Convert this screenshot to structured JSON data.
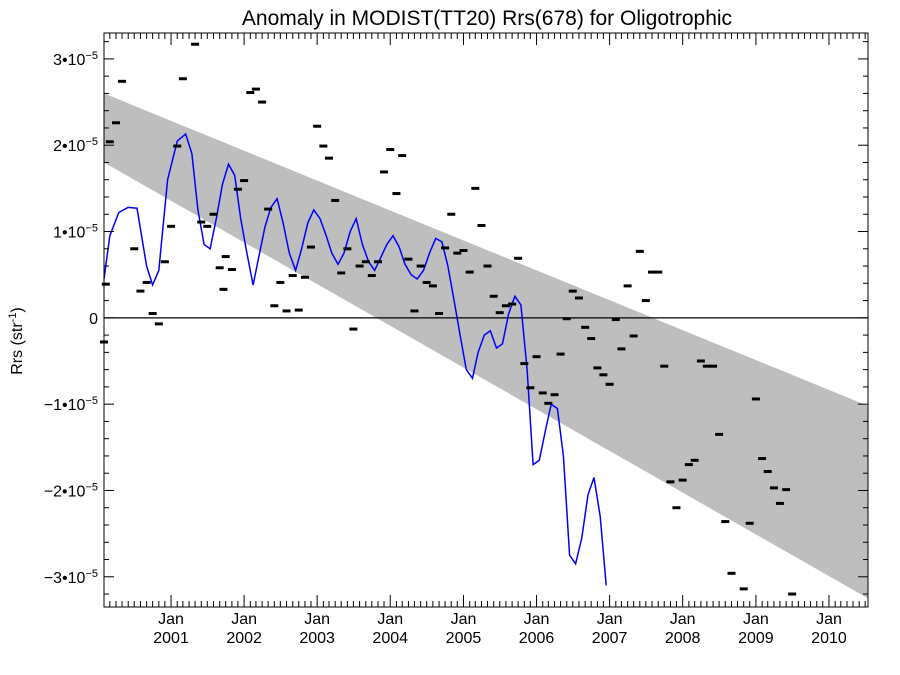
{
  "chart_data": {
    "type": "scatter",
    "title": "Anomaly in MODIST(TT20) Rrs(678) for Oligotrophic",
    "xlabel": "",
    "ylabel": "Rrs (str",
    "ylabel_superscript": "-1",
    "ylabel_suffix": ")",
    "y_scale": "1e-5",
    "ylim": [
      -3.35,
      3.3
    ],
    "xlim": [
      "2000-02-01",
      "2010-07-15"
    ],
    "zero_line": true,
    "grid": false,
    "y_ticks": [
      {
        "value": 3,
        "mantissa": "3•10",
        "exp": "−5"
      },
      {
        "value": 2,
        "mantissa": "2•10",
        "exp": "−5"
      },
      {
        "value": 1,
        "mantissa": "1•10",
        "exp": "−5"
      },
      {
        "value": 0,
        "mantissa": "0",
        "exp": ""
      },
      {
        "value": -1,
        "mantissa": "−1•10",
        "exp": "−5"
      },
      {
        "value": -2,
        "mantissa": "−2•10",
        "exp": "−5"
      },
      {
        "value": -3,
        "mantissa": "−3•10",
        "exp": "−5"
      }
    ],
    "x_ticks": [
      {
        "month": "Jan",
        "year": "2001",
        "x": "2001-01-01"
      },
      {
        "month": "Jan",
        "year": "2002",
        "x": "2002-01-01"
      },
      {
        "month": "Jan",
        "year": "2003",
        "x": "2003-01-01"
      },
      {
        "month": "Jan",
        "year": "2004",
        "x": "2004-01-01"
      },
      {
        "month": "Jan",
        "year": "2005",
        "x": "2005-01-01"
      },
      {
        "month": "Jan",
        "year": "2006",
        "x": "2006-01-01"
      },
      {
        "month": "Jan",
        "year": "2007",
        "x": "2007-01-01"
      },
      {
        "month": "Jan",
        "year": "2008",
        "x": "2008-01-01"
      },
      {
        "month": "Jan",
        "year": "2009",
        "x": "2009-01-01"
      },
      {
        "month": "Jan",
        "year": "2010",
        "x": "2010-01-01"
      }
    ],
    "trend_band": {
      "color": "#bebebe",
      "upper": [
        [
          "2000-02-01",
          2.6
        ],
        [
          "2010-07-15",
          -1.02
        ]
      ],
      "lower": [
        [
          "2000-02-01",
          1.8
        ],
        [
          "2010-07-15",
          -3.25
        ]
      ]
    },
    "series": [
      {
        "kind": "observations",
        "color": "#000000",
        "points": [
          [
            "2000-02-01",
            -0.28
          ],
          [
            "2000-02-10",
            0.39
          ],
          [
            "2000-03-01",
            2.04
          ],
          [
            "2000-04-01",
            2.26
          ],
          [
            "2000-05-01",
            2.74
          ],
          [
            "2000-07-01",
            0.8
          ],
          [
            "2000-08-01",
            0.31
          ],
          [
            "2000-09-01",
            0.41
          ],
          [
            "2000-10-01",
            0.05
          ],
          [
            "2000-11-01",
            -0.07
          ],
          [
            "2000-12-01",
            0.65
          ],
          [
            "2001-01-01",
            1.06
          ],
          [
            "2001-02-01",
            1.99
          ],
          [
            "2001-03-01",
            2.77
          ],
          [
            "2001-05-01",
            3.17
          ],
          [
            "2001-06-01",
            1.11
          ],
          [
            "2001-07-01",
            1.06
          ],
          [
            "2001-08-01",
            1.2
          ],
          [
            "2001-09-01",
            0.58
          ],
          [
            "2001-09-20",
            0.33
          ],
          [
            "2001-10-01",
            0.71
          ],
          [
            "2001-11-01",
            0.56
          ],
          [
            "2001-12-01",
            1.49
          ],
          [
            "2002-01-01",
            1.59
          ],
          [
            "2002-02-01",
            2.61
          ],
          [
            "2002-03-01",
            2.65
          ],
          [
            "2002-04-01",
            2.5
          ],
          [
            "2002-05-01",
            1.26
          ],
          [
            "2002-06-01",
            0.14
          ],
          [
            "2002-07-01",
            0.41
          ],
          [
            "2002-08-01",
            0.08
          ],
          [
            "2002-09-01",
            0.49
          ],
          [
            "2002-10-01",
            0.09
          ],
          [
            "2002-11-01",
            0.47
          ],
          [
            "2002-12-01",
            0.82
          ],
          [
            "2003-01-01",
            2.22
          ],
          [
            "2003-02-01",
            1.99
          ],
          [
            "2003-03-01",
            1.85
          ],
          [
            "2003-04-01",
            1.36
          ],
          [
            "2003-05-01",
            0.52
          ],
          [
            "2003-06-01",
            0.8
          ],
          [
            "2003-07-01",
            -0.13
          ],
          [
            "2003-08-01",
            0.6
          ],
          [
            "2003-09-01",
            0.65
          ],
          [
            "2003-10-01",
            0.49
          ],
          [
            "2003-11-01",
            0.65
          ],
          [
            "2003-12-01",
            1.69
          ],
          [
            "2004-01-01",
            1.95
          ],
          [
            "2004-02-01",
            1.44
          ],
          [
            "2004-03-01",
            1.88
          ],
          [
            "2004-04-01",
            0.68
          ],
          [
            "2004-05-01",
            0.08
          ],
          [
            "2004-06-01",
            0.6
          ],
          [
            "2004-07-01",
            0.41
          ],
          [
            "2004-08-01",
            0.37
          ],
          [
            "2004-09-01",
            0.05
          ],
          [
            "2004-10-01",
            0.81
          ],
          [
            "2004-11-01",
            1.2
          ],
          [
            "2004-12-01",
            0.75
          ],
          [
            "2005-01-01",
            0.78
          ],
          [
            "2005-02-01",
            0.53
          ],
          [
            "2005-03-01",
            1.5
          ],
          [
            "2005-04-01",
            1.07
          ],
          [
            "2005-05-01",
            0.6
          ],
          [
            "2005-06-01",
            0.25
          ],
          [
            "2005-07-01",
            0.06
          ],
          [
            "2005-08-01",
            0.14
          ],
          [
            "2005-09-01",
            0.16
          ],
          [
            "2005-10-01",
            0.69
          ],
          [
            "2005-11-01",
            -0.53
          ],
          [
            "2005-12-01",
            -0.81
          ],
          [
            "2006-01-01",
            -0.45
          ],
          [
            "2006-02-01",
            -0.87
          ],
          [
            "2006-03-01",
            -0.99
          ],
          [
            "2006-04-01",
            -0.89
          ],
          [
            "2006-05-01",
            -0.42
          ],
          [
            "2006-06-01",
            -0.01
          ],
          [
            "2006-07-01",
            0.31
          ],
          [
            "2006-08-01",
            0.23
          ],
          [
            "2006-09-01",
            -0.11
          ],
          [
            "2006-10-01",
            -0.24
          ],
          [
            "2006-11-01",
            -0.58
          ],
          [
            "2006-12-01",
            -0.66
          ],
          [
            "2007-01-01",
            -0.77
          ],
          [
            "2007-02-01",
            -0.02
          ],
          [
            "2007-03-01",
            -0.36
          ],
          [
            "2007-04-01",
            0.37
          ],
          [
            "2007-05-01",
            -0.21
          ],
          [
            "2007-06-01",
            0.77
          ],
          [
            "2007-07-01",
            0.2
          ],
          [
            "2007-08-01",
            0.53
          ],
          [
            "2007-09-01",
            0.53
          ],
          [
            "2007-10-01",
            -0.56
          ],
          [
            "2007-11-01",
            -1.9
          ],
          [
            "2007-12-01",
            -2.2
          ],
          [
            "2008-01-01",
            -1.88
          ],
          [
            "2008-02-01",
            -1.7
          ],
          [
            "2008-03-01",
            -1.65
          ],
          [
            "2008-04-01",
            -0.5
          ],
          [
            "2008-05-01",
            -0.56
          ],
          [
            "2008-06-01",
            -0.56
          ],
          [
            "2008-07-01",
            -1.35
          ],
          [
            "2008-08-01",
            -2.36
          ],
          [
            "2008-09-01",
            -2.96
          ],
          [
            "2008-11-01",
            -3.14
          ],
          [
            "2008-12-01",
            -2.38
          ],
          [
            "2009-01-01",
            -0.94
          ],
          [
            "2009-02-01",
            -1.63
          ],
          [
            "2009-03-01",
            -1.78
          ],
          [
            "2009-04-01",
            -1.97
          ],
          [
            "2009-05-01",
            -2.15
          ],
          [
            "2009-06-01",
            -1.99
          ],
          [
            "2009-07-01",
            -3.2
          ]
        ]
      },
      {
        "kind": "smoothed",
        "color": "#0000ff",
        "points": [
          [
            "2000-02-01",
            0.45
          ],
          [
            "2000-03-01",
            0.95
          ],
          [
            "2000-04-15",
            1.22
          ],
          [
            "2000-06-01",
            1.28
          ],
          [
            "2000-07-15",
            1.27
          ],
          [
            "2000-09-01",
            0.6
          ],
          [
            "2000-10-01",
            0.38
          ],
          [
            "2000-11-01",
            0.55
          ],
          [
            "2000-12-15",
            1.6
          ],
          [
            "2001-02-01",
            2.05
          ],
          [
            "2001-03-15",
            2.13
          ],
          [
            "2001-04-15",
            1.9
          ],
          [
            "2001-05-15",
            1.25
          ],
          [
            "2001-06-15",
            0.85
          ],
          [
            "2001-07-15",
            0.8
          ],
          [
            "2001-08-15",
            1.15
          ],
          [
            "2001-09-15",
            1.55
          ],
          [
            "2001-10-15",
            1.78
          ],
          [
            "2001-11-15",
            1.65
          ],
          [
            "2001-12-15",
            1.15
          ],
          [
            "2002-01-15",
            0.75
          ],
          [
            "2002-02-15",
            0.38
          ],
          [
            "2002-03-15",
            0.7
          ],
          [
            "2002-04-15",
            1.05
          ],
          [
            "2002-05-15",
            1.28
          ],
          [
            "2002-06-15",
            1.38
          ],
          [
            "2002-07-15",
            1.1
          ],
          [
            "2002-08-15",
            0.75
          ],
          [
            "2002-09-15",
            0.55
          ],
          [
            "2002-10-15",
            0.8
          ],
          [
            "2002-11-15",
            1.1
          ],
          [
            "2002-12-15",
            1.25
          ],
          [
            "2003-01-15",
            1.15
          ],
          [
            "2003-02-15",
            0.95
          ],
          [
            "2003-03-15",
            0.75
          ],
          [
            "2003-04-15",
            0.62
          ],
          [
            "2003-05-15",
            0.75
          ],
          [
            "2003-06-15",
            1.0
          ],
          [
            "2003-07-15",
            1.15
          ],
          [
            "2003-08-15",
            0.85
          ],
          [
            "2003-09-15",
            0.65
          ],
          [
            "2003-10-15",
            0.55
          ],
          [
            "2003-11-15",
            0.7
          ],
          [
            "2003-12-15",
            0.85
          ],
          [
            "2004-01-15",
            0.95
          ],
          [
            "2004-02-15",
            0.82
          ],
          [
            "2004-03-15",
            0.62
          ],
          [
            "2004-04-15",
            0.5
          ],
          [
            "2004-05-15",
            0.45
          ],
          [
            "2004-06-15",
            0.55
          ],
          [
            "2004-07-15",
            0.75
          ],
          [
            "2004-08-15",
            0.92
          ],
          [
            "2004-09-15",
            0.88
          ],
          [
            "2004-10-15",
            0.6
          ],
          [
            "2004-11-15",
            0.2
          ],
          [
            "2004-12-15",
            -0.2
          ],
          [
            "2005-01-15",
            -0.6
          ],
          [
            "2005-02-15",
            -0.7
          ],
          [
            "2005-03-15",
            -0.4
          ],
          [
            "2005-04-15",
            -0.2
          ],
          [
            "2005-05-15",
            -0.15
          ],
          [
            "2005-06-15",
            -0.35
          ],
          [
            "2005-07-15",
            -0.3
          ],
          [
            "2005-08-15",
            0.05
          ],
          [
            "2005-09-15",
            0.25
          ],
          [
            "2005-10-15",
            0.15
          ],
          [
            "2005-11-15",
            -0.6
          ],
          [
            "2005-12-15",
            -1.7
          ],
          [
            "2006-01-15",
            -1.65
          ],
          [
            "2006-02-15",
            -1.3
          ],
          [
            "2006-03-15",
            -1.0
          ],
          [
            "2006-04-15",
            -1.05
          ],
          [
            "2006-05-15",
            -1.6
          ],
          [
            "2006-06-15",
            -2.75
          ],
          [
            "2006-07-15",
            -2.85
          ],
          [
            "2006-08-15",
            -2.55
          ],
          [
            "2006-09-15",
            -2.05
          ],
          [
            "2006-10-15",
            -1.85
          ],
          [
            "2006-11-15",
            -2.3
          ],
          [
            "2006-12-15",
            -3.1
          ]
        ]
      }
    ]
  }
}
